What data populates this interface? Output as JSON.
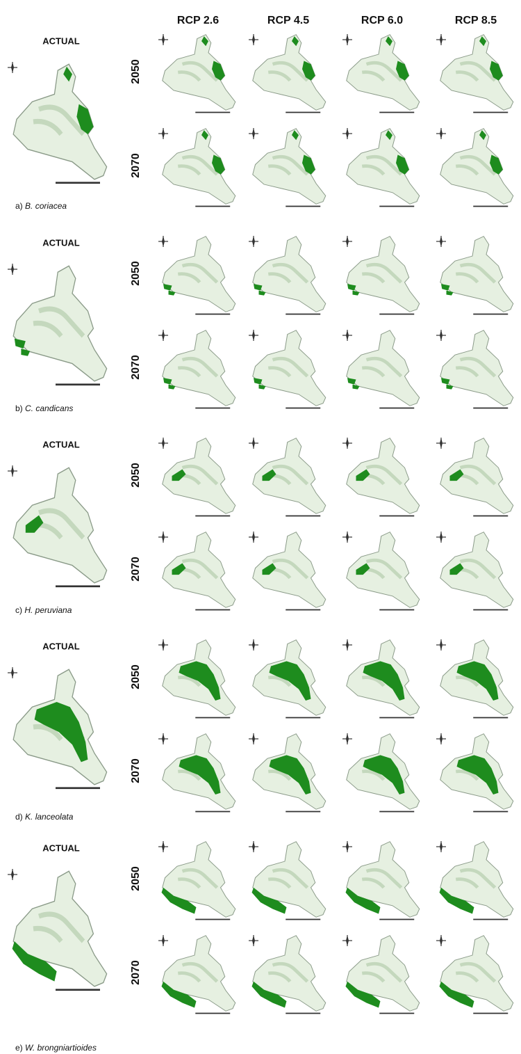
{
  "columns": [
    "RCP 2.6",
    "RCP 4.5",
    "RCP 6.0",
    "RCP 8.5"
  ],
  "species": [
    {
      "actual": "ACTUAL",
      "years": [
        "2050",
        "2070"
      ],
      "caption": {
        "prefix": "a)",
        "name": "B. coriacea"
      }
    },
    {
      "actual": "ACTUAL",
      "years": [
        "2050",
        "2070"
      ],
      "caption": {
        "prefix": "b)",
        "name": "C. candicans"
      }
    },
    {
      "actual": "ACTUAL",
      "years": [
        "2050",
        "2070"
      ],
      "caption": {
        "prefix": "c)",
        "name": "H. peruviana"
      }
    },
    {
      "actual": "ACTUAL",
      "years": [
        "2050",
        "2070"
      ],
      "caption": {
        "prefix": "d)",
        "name": "K. lanceolata"
      }
    },
    {
      "actual": "ACTUAL",
      "years": [
        "2050",
        "2070"
      ],
      "caption": {
        "prefix": "e)",
        "name": "W. brongniartioides"
      }
    }
  ]
}
